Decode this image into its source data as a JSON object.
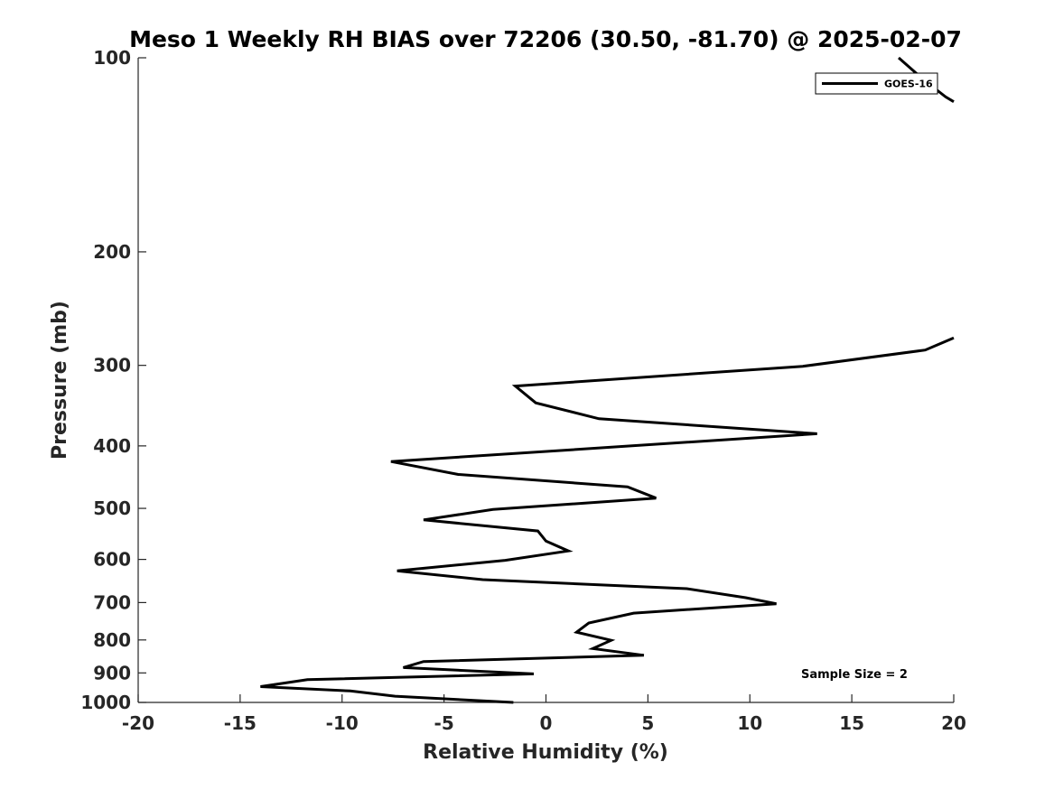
{
  "chart_data": {
    "type": "line",
    "title": "Meso 1 Weekly RH BIAS over 72206 (30.50, -81.70) @ 2025-02-07",
    "xlabel": "Relative Humidity (%)",
    "ylabel": "Pressure (mb)",
    "xlim": [
      -20,
      20
    ],
    "ylim": [
      1000,
      100
    ],
    "yscale": "log",
    "grid": false,
    "legend_position": "top-right",
    "x_ticks": [
      -20,
      -15,
      -10,
      -5,
      0,
      5,
      10,
      15,
      20
    ],
    "x_tick_labels": [
      "-20",
      "-15",
      "-10",
      "-5",
      "0",
      "5",
      "10",
      "15",
      "20"
    ],
    "y_ticks": [
      100,
      200,
      300,
      400,
      500,
      600,
      700,
      800,
      900,
      1000
    ],
    "y_tick_labels": [
      "100",
      "200",
      "300",
      "400",
      "500",
      "600",
      "700",
      "800",
      "900",
      "1000"
    ],
    "series": [
      {
        "name": "GOES-16",
        "color": "#000000",
        "segments": [
          {
            "x": [
              17.3,
              18.5,
              19.6,
              20.0
            ],
            "y": [
              100,
              108,
              115,
              117
            ]
          },
          {
            "x": [
              20.0,
              18.6,
              12.6,
              -1.5,
              -0.5,
              2.6,
              13.3,
              -7.6,
              -4.3,
              4.0,
              5.4,
              -2.6,
              -6.0,
              -0.4,
              0.0,
              1.1,
              -2.0,
              -7.3,
              -3.1,
              6.9,
              9.8,
              11.3,
              4.3,
              2.1,
              1.5,
              3.2,
              2.3,
              4.8,
              -6.0,
              -7.0,
              -0.6,
              -11.7,
              -14.0,
              -9.6,
              -7.4,
              -1.6
            ],
            "y": [
              272,
              284,
              301,
              323,
              343,
              363,
              383,
              423,
              443,
              463,
              482,
              502,
              521,
              542,
              562,
              582,
              602,
              625,
              645,
              666,
              688,
              703,
              727,
              753,
              778,
              801,
              825,
              845,
              864,
              883,
              903,
              922,
              945,
              960,
              978,
              1000
            ]
          }
        ]
      }
    ],
    "annotations": [
      {
        "text": "Sample Size = 2"
      }
    ]
  }
}
